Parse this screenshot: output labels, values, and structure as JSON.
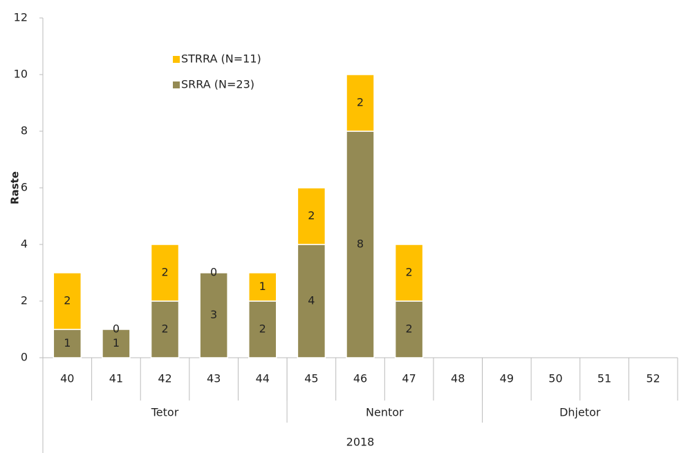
{
  "chart_data": {
    "type": "bar",
    "stacked": true,
    "y_label": "Raste",
    "x_label": "2018",
    "categories": [
      "40",
      "41",
      "42",
      "43",
      "44",
      "45",
      "46",
      "47",
      "48",
      "49",
      "50",
      "51",
      "52"
    ],
    "groups": [
      {
        "label": "Tetor",
        "from": "40",
        "to": "44"
      },
      {
        "label": "Nentor",
        "from": "45",
        "to": "48"
      },
      {
        "label": "Dhjetor",
        "from": "49",
        "to": "52"
      }
    ],
    "series": [
      {
        "name": "SRRA (N=23)",
        "color": "#948a54",
        "values": [
          1,
          1,
          2,
          3,
          2,
          4,
          8,
          2,
          null,
          null,
          null,
          null,
          null
        ]
      },
      {
        "name": "STRRA (N=11)",
        "color": "#ffc000",
        "values": [
          2,
          0,
          2,
          0,
          1,
          2,
          2,
          2,
          null,
          null,
          null,
          null,
          null
        ]
      }
    ],
    "ylim": [
      0,
      12
    ],
    "yticks": [
      0,
      2,
      4,
      6,
      8,
      10,
      12
    ],
    "grid": false,
    "legend": "top-left"
  }
}
